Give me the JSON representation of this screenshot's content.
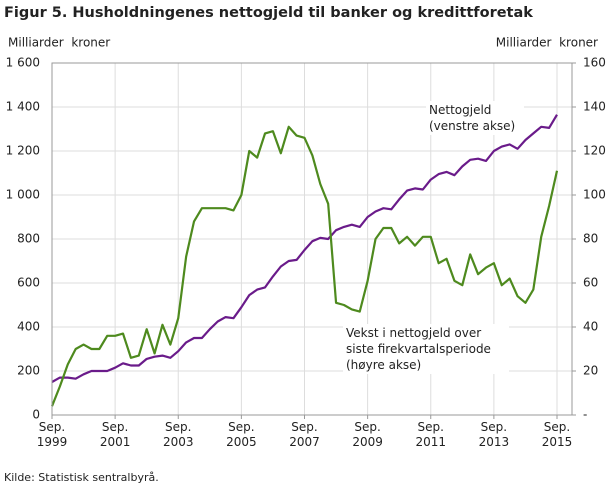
{
  "chart_data": {
    "type": "line",
    "title": "Figur 5. Husholdningenes nettogjeld til banker og kredittforetak",
    "y_label": "Milliarder  kroner",
    "y2_label": "Milliarder  kroner",
    "source": "Kilde: Statistisk sentralbyrå.",
    "categories": [
      "Sep. 1999",
      null,
      null,
      null,
      null,
      null,
      null,
      null,
      "Sep. 2001",
      null,
      null,
      null,
      null,
      null,
      null,
      null,
      "Sep. 2003",
      null,
      null,
      null,
      null,
      null,
      null,
      null,
      "Sep. 2005",
      null,
      null,
      null,
      null,
      null,
      null,
      null,
      "Sep. 2007",
      null,
      null,
      null,
      null,
      null,
      null,
      null,
      "Sep. 2009",
      null,
      null,
      null,
      null,
      null,
      null,
      null,
      "Sep. 2011",
      null,
      null,
      null,
      null,
      null,
      null,
      null,
      "Sep. 2013",
      null,
      null,
      null,
      null,
      null,
      null,
      null,
      "Sep. 2015"
    ],
    "series": [
      {
        "name": "Nettogjeld (venstre akse)",
        "color": "#6a1b8a",
        "values": [
          150,
          170,
          170,
          165,
          185,
          200,
          200,
          200,
          215,
          235,
          225,
          225,
          255,
          265,
          270,
          260,
          290,
          330,
          350,
          350,
          390,
          425,
          445,
          440,
          490,
          545,
          570,
          580,
          630,
          675,
          700,
          705,
          750,
          790,
          805,
          800,
          840,
          855,
          865,
          855,
          900,
          925,
          940,
          935,
          980,
          1020,
          1030,
          1025,
          1070,
          1095,
          1105,
          1090,
          1130,
          1160,
          1165,
          1155,
          1200,
          1220,
          1230,
          1210,
          1250,
          1280,
          1310,
          1305,
          1365
        ]
      },
      {
        "name": "Vekst  i nettogjeld over siste firekvartalsperiode (høyre akse)",
        "color": "#4e8a1e",
        "axis": "y2",
        "values": [
          4,
          13,
          23,
          30,
          32,
          30,
          30,
          36,
          36,
          37,
          26,
          27,
          39,
          28,
          41,
          32,
          44,
          72,
          88,
          94,
          94,
          94,
          94,
          93,
          100,
          120,
          117,
          128,
          129,
          119,
          131,
          127,
          126,
          118,
          105,
          96,
          51,
          50,
          48,
          47,
          61,
          80,
          85,
          85,
          78,
          81,
          77,
          81,
          81,
          69,
          71,
          61,
          59,
          73,
          64,
          67,
          69,
          59,
          62,
          54,
          51,
          57,
          81,
          95,
          111
        ]
      }
    ],
    "ylim": [
      0,
      1600
    ],
    "yticks": [
      0,
      200,
      400,
      600,
      800,
      {
        "value": 1000,
        "label": "1 000"
      },
      {
        "value": 1200,
        "label": "1 200"
      },
      {
        "value": 1400,
        "label": "1 400"
      },
      {
        "value": 1600,
        "label": "1 600"
      }
    ],
    "y2lim": [
      0,
      160
    ],
    "y2ticks": [
      {
        "value": 0,
        "label": "-"
      },
      20,
      40,
      60,
      80,
      100,
      120,
      140,
      160
    ],
    "grid": true
  }
}
